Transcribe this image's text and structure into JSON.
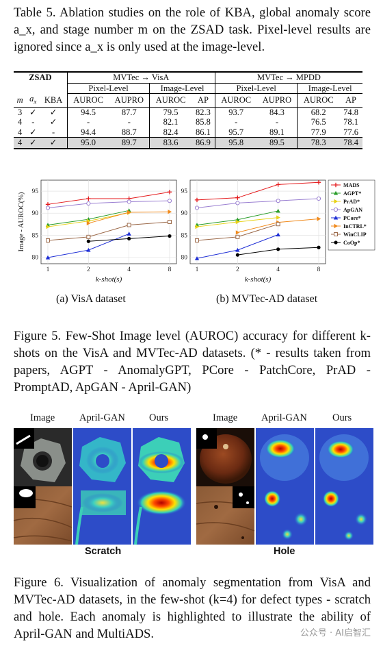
{
  "table_caption": "Table 5. Ablation studies on the role of KBA, global anomaly score a_x, and stage number m on the ZSAD task. Pixel-level results are ignored since a_x is only used at the image-level.",
  "table": {
    "zsad": "ZSAD",
    "group_visa": "MVTec → VisA",
    "group_mpdd": "MVTec → MPDD",
    "pixel_level": "Pixel-Level",
    "image_level": "Image-Level",
    "col_m": "m",
    "col_ax": "a",
    "col_ax_sub": "x",
    "col_kba": "KBA",
    "metrics": [
      "AUROC",
      "AUPRO",
      "AUROC",
      "AP",
      "AUROC",
      "AUPRO",
      "AUROC",
      "AP"
    ],
    "rows": [
      {
        "m": "3",
        "ax": "✓",
        "kba": "✓",
        "vals": [
          "94.5",
          "87.7",
          "79.5",
          "82.3",
          "93.7",
          "84.3",
          "68.2",
          "74.8"
        ]
      },
      {
        "m": "4",
        "ax": "-",
        "kba": "✓",
        "vals": [
          "-",
          "-",
          "82.1",
          "85.8",
          "-",
          "-",
          "76.5",
          "78.1"
        ]
      },
      {
        "m": "4",
        "ax": "✓",
        "kba": "-",
        "vals": [
          "94.4",
          "88.7",
          "82.4",
          "86.1",
          "95.7",
          "89.1",
          "77.9",
          "77.6"
        ]
      },
      {
        "m": "4",
        "ax": "✓",
        "kba": "✓",
        "vals": [
          "95.0",
          "89.7",
          "83.6",
          "86.9",
          "95.8",
          "89.5",
          "78.3",
          "78.4"
        ]
      }
    ]
  },
  "chart_data": [
    {
      "type": "line",
      "title": "",
      "xlabel": "k-shot(s)",
      "ylabel": "Image - AUROC(%)",
      "x": [
        "1",
        "2",
        "4",
        "8"
      ],
      "ylim": [
        78.5,
        97.5
      ],
      "yticks": [
        80,
        85,
        90,
        95
      ],
      "grid": true,
      "series": [
        {
          "name": "MADS",
          "color": "#e41a1c",
          "marker": "plus",
          "values": [
            92.0,
            93.3,
            93.3,
            94.8
          ]
        },
        {
          "name": "AGPT*",
          "color": "#2a9d2a",
          "marker": "triangle-up",
          "values": [
            87.3,
            88.6,
            90.6,
            null
          ]
        },
        {
          "name": "PrAD*",
          "color": "#e8d21a",
          "marker": "triangle-right",
          "values": [
            86.9,
            88.2,
            90.1,
            null
          ]
        },
        {
          "name": "ApGAN",
          "color": "#9a7fd1",
          "marker": "circle-open",
          "values": [
            91.2,
            92.2,
            92.6,
            92.8
          ]
        },
        {
          "name": "PCore*",
          "color": "#1f2fd6",
          "marker": "triangle-up",
          "values": [
            79.9,
            81.6,
            85.3,
            null
          ]
        },
        {
          "name": "InCTRL*",
          "color": "#f08a1c",
          "marker": "triangle-right",
          "values": [
            null,
            87.7,
            90.2,
            90.3
          ]
        },
        {
          "name": "WinCLIP",
          "color": "#9c6a4a",
          "marker": "square-open",
          "values": [
            83.8,
            84.6,
            87.3,
            88.0
          ]
        },
        {
          "name": "CoOp*",
          "color": "#000000",
          "marker": "circle",
          "values": [
            null,
            83.6,
            84.2,
            84.8
          ]
        }
      ]
    },
    {
      "type": "line",
      "title": "",
      "xlabel": "k-shot(s)",
      "ylabel": "",
      "x": [
        "1",
        "2",
        "4",
        "8"
      ],
      "ylim": [
        78.5,
        97.5
      ],
      "yticks": [
        80,
        85,
        90,
        95
      ],
      "grid": true,
      "legend": "right",
      "series": [
        {
          "name": "MADS",
          "color": "#e41a1c",
          "marker": "plus",
          "values": [
            93.0,
            93.5,
            96.5,
            97.0
          ]
        },
        {
          "name": "AGPT*",
          "color": "#2a9d2a",
          "marker": "triangle-up",
          "values": [
            87.3,
            88.5,
            90.5,
            null
          ]
        },
        {
          "name": "PrAD*",
          "color": "#e8d21a",
          "marker": "triangle-right",
          "values": [
            86.9,
            88.0,
            89.0,
            null
          ]
        },
        {
          "name": "ApGAN",
          "color": "#9a7fd1",
          "marker": "circle-open",
          "values": [
            91.2,
            92.3,
            92.8,
            93.3
          ]
        },
        {
          "name": "PCore*",
          "color": "#1f2fd6",
          "marker": "triangle-up",
          "values": [
            79.7,
            81.6,
            85.1,
            null
          ]
        },
        {
          "name": "InCTRL*",
          "color": "#f08a1c",
          "marker": "triangle-right",
          "values": [
            null,
            85.6,
            87.9,
            88.7
          ]
        },
        {
          "name": "WinCLIP",
          "color": "#9c6a4a",
          "marker": "square-open",
          "values": [
            83.8,
            84.6,
            87.5,
            null
          ]
        },
        {
          "name": "CoOp*",
          "color": "#000000",
          "marker": "circle",
          "values": [
            null,
            80.5,
            81.8,
            82.2
          ]
        }
      ]
    }
  ],
  "subcaptions": [
    "(a) VisA dataset",
    "(b) MVTec-AD dataset"
  ],
  "fig5_caption": "Figure 5. Few-Shot Image level (AUROC) accuracy for different k-shots on the VisA and MVTec-AD datasets. (* - results taken from papers, AGPT - AnomalyGPT, PCore - PatchCore, PrAD - PromptAD, ApGAN - April-GAN)",
  "fig6": {
    "col_headers": [
      "Image",
      "April-GAN",
      "Ours",
      "Image",
      "April-GAN",
      "Ours"
    ],
    "row_labels": [
      "Scratch",
      "Hole"
    ]
  },
  "fig6_caption": "Figure 6. Visualization of anomaly segmentation from VisA and MVTec-AD datasets, in the few-shot (k=4) for defect types - scratch and hole. Each anomaly is highlighted to illustrate the ability of April-GAN and MultiADS.",
  "watermark": "公众号 · AI启智汇"
}
